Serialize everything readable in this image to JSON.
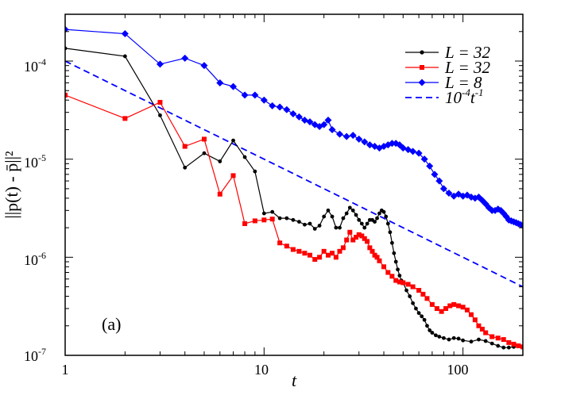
{
  "chart_data": {
    "type": "line",
    "xscale": "log",
    "yscale": "log",
    "xlim": [
      1,
      200
    ],
    "ylim": [
      1e-07,
      0.0003
    ],
    "xlabel": "t",
    "ylabel": "||p(t) - p̄||²",
    "x_tick_labels": [
      {
        "value": 1,
        "label": "1"
      },
      {
        "value": 10,
        "label": "10"
      },
      {
        "value": 100,
        "label": "100"
      }
    ],
    "y_tick_labels": [
      {
        "value": 1e-07,
        "base": "10",
        "exp": "-7"
      },
      {
        "value": 1e-06,
        "base": "10",
        "exp": "-6"
      },
      {
        "value": 1e-05,
        "base": "10",
        "exp": "-5"
      },
      {
        "value": 0.0001,
        "base": "10",
        "exp": "-4"
      }
    ],
    "annotation": "(a)",
    "legend_position": "top-right",
    "series": [
      {
        "name": "L = 32",
        "color": "#000000",
        "marker": "circle",
        "points": [
          [
            1,
            0.000135
          ],
          [
            2,
            0.000112
          ],
          [
            3,
            2.8e-05
          ],
          [
            4,
            8.2e-06
          ],
          [
            5,
            1.15e-05
          ],
          [
            6,
            9.5e-06
          ],
          [
            7,
            1.55e-05
          ],
          [
            8,
            1.05e-05
          ],
          [
            9,
            7.5e-06
          ],
          [
            10,
            2.8e-06
          ],
          [
            11,
            2.9e-06
          ],
          [
            12,
            2.5e-06
          ],
          [
            13,
            2.5e-06
          ],
          [
            14,
            2.4e-06
          ],
          [
            15,
            2.3e-06
          ],
          [
            16,
            2.15e-06
          ],
          [
            17,
            2.2e-06
          ],
          [
            18,
            1.95e-06
          ],
          [
            19,
            2.1e-06
          ],
          [
            20,
            2.6e-06
          ],
          [
            21,
            3e-06
          ],
          [
            22,
            2.6e-06
          ],
          [
            23,
            2e-06
          ],
          [
            24,
            2e-06
          ],
          [
            25,
            2.5e-06
          ],
          [
            26,
            2.8e-06
          ],
          [
            27,
            3.2e-06
          ],
          [
            28,
            3e-06
          ],
          [
            29,
            2.7e-06
          ],
          [
            30,
            2.4e-06
          ],
          [
            31,
            2.2e-06
          ],
          [
            32,
            2e-06
          ],
          [
            33,
            2.2e-06
          ],
          [
            34,
            2.4e-06
          ],
          [
            35,
            2.4e-06
          ],
          [
            36,
            2.3e-06
          ],
          [
            37,
            2.5e-06
          ],
          [
            38,
            2.8e-06
          ],
          [
            39,
            3e-06
          ],
          [
            40,
            2.9e-06
          ],
          [
            41,
            2.6e-06
          ],
          [
            42,
            2.2e-06
          ],
          [
            43,
            1.8e-06
          ],
          [
            44,
            1.4e-06
          ],
          [
            45,
            1.1e-06
          ],
          [
            46,
            9e-07
          ],
          [
            47,
            7.5e-07
          ],
          [
            48,
            6.5e-07
          ],
          [
            49,
            5.8e-07
          ],
          [
            50,
            5.5e-07
          ],
          [
            52,
            4.6e-07
          ],
          [
            54,
            4e-07
          ],
          [
            56,
            3.4e-07
          ],
          [
            58,
            3e-07
          ],
          [
            60,
            2.7e-07
          ],
          [
            62,
            2.5e-07
          ],
          [
            64,
            2.3e-07
          ],
          [
            66,
            2e-07
          ],
          [
            68,
            1.8e-07
          ],
          [
            70,
            1.7e-07
          ],
          [
            73,
            1.6e-07
          ],
          [
            76,
            1.55e-07
          ],
          [
            80,
            1.5e-07
          ],
          [
            85,
            1.45e-07
          ],
          [
            90,
            1.5e-07
          ],
          [
            95,
            1.48e-07
          ],
          [
            100,
            1.42e-07
          ],
          [
            110,
            1.38e-07
          ],
          [
            120,
            1.45e-07
          ],
          [
            130,
            1.4e-07
          ],
          [
            140,
            1.32e-07
          ],
          [
            150,
            1.25e-07
          ],
          [
            160,
            1.2e-07
          ],
          [
            170,
            1.2e-07
          ],
          [
            180,
            1.22e-07
          ],
          [
            190,
            1.25e-07
          ],
          [
            200,
            1.23e-07
          ]
        ]
      },
      {
        "name": "L = 32",
        "color": "#ff0000",
        "marker": "square",
        "points": [
          [
            1,
            4.5e-05
          ],
          [
            2,
            2.6e-05
          ],
          [
            3,
            3.8e-05
          ],
          [
            4,
            1.35e-05
          ],
          [
            5,
            1.6e-05
          ],
          [
            6,
            4.4e-06
          ],
          [
            7,
            6.8e-06
          ],
          [
            8,
            2.2e-06
          ],
          [
            9,
            2.35e-06
          ],
          [
            10,
            2.4e-06
          ],
          [
            11,
            2.45e-06
          ],
          [
            12,
            1.4e-06
          ],
          [
            13,
            1.3e-06
          ],
          [
            14,
            1.2e-06
          ],
          [
            15,
            1.15e-06
          ],
          [
            16,
            1.1e-06
          ],
          [
            17,
            1.05e-06
          ],
          [
            18,
            9.5e-07
          ],
          [
            19,
            1e-06
          ],
          [
            20,
            1.15e-06
          ],
          [
            21,
            1.05e-06
          ],
          [
            22,
            1.1e-06
          ],
          [
            23,
            1e-06
          ],
          [
            24,
            1.15e-06
          ],
          [
            25,
            1.25e-06
          ],
          [
            26,
            1.5e-06
          ],
          [
            27,
            1.8e-06
          ],
          [
            28,
            1.5e-06
          ],
          [
            29,
            1.6e-06
          ],
          [
            30,
            1.7e-06
          ],
          [
            31,
            1.65e-06
          ],
          [
            32,
            1.55e-06
          ],
          [
            33,
            1.45e-06
          ],
          [
            34,
            1.25e-06
          ],
          [
            35,
            1.15e-06
          ],
          [
            36,
            1.05e-06
          ],
          [
            37,
            1e-06
          ],
          [
            38,
            9.2e-07
          ],
          [
            40,
            8e-07
          ],
          [
            42,
            7e-07
          ],
          [
            44,
            6.4e-07
          ],
          [
            46,
            5.8e-07
          ],
          [
            48,
            5.6e-07
          ],
          [
            50,
            5.5e-07
          ],
          [
            53,
            5.3e-07
          ],
          [
            56,
            5e-07
          ],
          [
            60,
            4.6e-07
          ],
          [
            63,
            4.2e-07
          ],
          [
            66,
            3.8e-07
          ],
          [
            70,
            3.3e-07
          ],
          [
            74,
            3e-07
          ],
          [
            78,
            2.8e-07
          ],
          [
            82,
            3e-07
          ],
          [
            86,
            3.2e-07
          ],
          [
            90,
            3.3e-07
          ],
          [
            95,
            3.2e-07
          ],
          [
            100,
            3.1e-07
          ],
          [
            105,
            2.9e-07
          ],
          [
            110,
            2.6e-07
          ],
          [
            115,
            2.3e-07
          ],
          [
            120,
            2e-07
          ],
          [
            125,
            1.85e-07
          ],
          [
            130,
            1.7e-07
          ],
          [
            140,
            1.55e-07
          ],
          [
            150,
            1.5e-07
          ],
          [
            160,
            1.45e-07
          ],
          [
            170,
            1.35e-07
          ],
          [
            180,
            1.3e-07
          ],
          [
            190,
            1.25e-07
          ],
          [
            200,
            1.22e-07
          ]
        ]
      },
      {
        "name": "L = 8",
        "color": "#0000ff",
        "marker": "diamond",
        "points": [
          [
            1,
            0.00021
          ],
          [
            2,
            0.00019
          ],
          [
            3,
            9.3e-05
          ],
          [
            4,
            0.000107
          ],
          [
            5,
            9e-05
          ],
          [
            6,
            6e-05
          ],
          [
            7,
            5.5e-05
          ],
          [
            8,
            4.5e-05
          ],
          [
            9,
            4.5e-05
          ],
          [
            10,
            4e-05
          ],
          [
            11,
            3.5e-05
          ],
          [
            12,
            3.4e-05
          ],
          [
            13,
            3.2e-05
          ],
          [
            14,
            2.9e-05
          ],
          [
            15,
            2.7e-05
          ],
          [
            16,
            2.5e-05
          ],
          [
            17,
            2.4e-05
          ],
          [
            18,
            2.25e-05
          ],
          [
            19,
            2.15e-05
          ],
          [
            20,
            2.25e-05
          ],
          [
            21,
            2.5e-05
          ],
          [
            22,
            2e-05
          ],
          [
            24,
            1.8e-05
          ],
          [
            26,
            1.7e-05
          ],
          [
            28,
            1.75e-05
          ],
          [
            30,
            1.6e-05
          ],
          [
            32,
            1.5e-05
          ],
          [
            34,
            1.4e-05
          ],
          [
            36,
            1.35e-05
          ],
          [
            38,
            1.3e-05
          ],
          [
            40,
            1.35e-05
          ],
          [
            42,
            1.4e-05
          ],
          [
            44,
            1.45e-05
          ],
          [
            46,
            1.45e-05
          ],
          [
            48,
            1.4e-05
          ],
          [
            50,
            1.3e-05
          ],
          [
            53,
            1.25e-05
          ],
          [
            56,
            1.2e-05
          ],
          [
            60,
            1.15e-05
          ],
          [
            64,
            1e-05
          ],
          [
            68,
            8.5e-06
          ],
          [
            72,
            7e-06
          ],
          [
            76,
            6e-06
          ],
          [
            80,
            5e-06
          ],
          [
            85,
            4.5e-06
          ],
          [
            90,
            4.2e-06
          ],
          [
            95,
            4.4e-06
          ],
          [
            100,
            4.2e-06
          ],
          [
            105,
            4.3e-06
          ],
          [
            110,
            4.1e-06
          ],
          [
            115,
            4e-06
          ],
          [
            120,
            4.1e-06
          ],
          [
            125,
            3.8e-06
          ],
          [
            130,
            3.5e-06
          ],
          [
            135,
            3.2e-06
          ],
          [
            140,
            3e-06
          ],
          [
            145,
            3e-06
          ],
          [
            150,
            3.1e-06
          ],
          [
            155,
            3e-06
          ],
          [
            160,
            2.8e-06
          ],
          [
            165,
            2.6e-06
          ],
          [
            170,
            2.4e-06
          ],
          [
            175,
            2.35e-06
          ],
          [
            180,
            2.3e-06
          ],
          [
            185,
            2.25e-06
          ],
          [
            190,
            2.2e-06
          ],
          [
            195,
            2.15e-06
          ],
          [
            200,
            2.1e-06
          ]
        ]
      }
    ],
    "reference_line": {
      "name": "10-4 t-1",
      "label_main": "10",
      "label_exp1": "-4",
      "label_var": "t",
      "label_exp2": "-1",
      "color": "#0000ff",
      "style": "dashed",
      "coefficient": 0.0001,
      "exponent": -1
    }
  }
}
